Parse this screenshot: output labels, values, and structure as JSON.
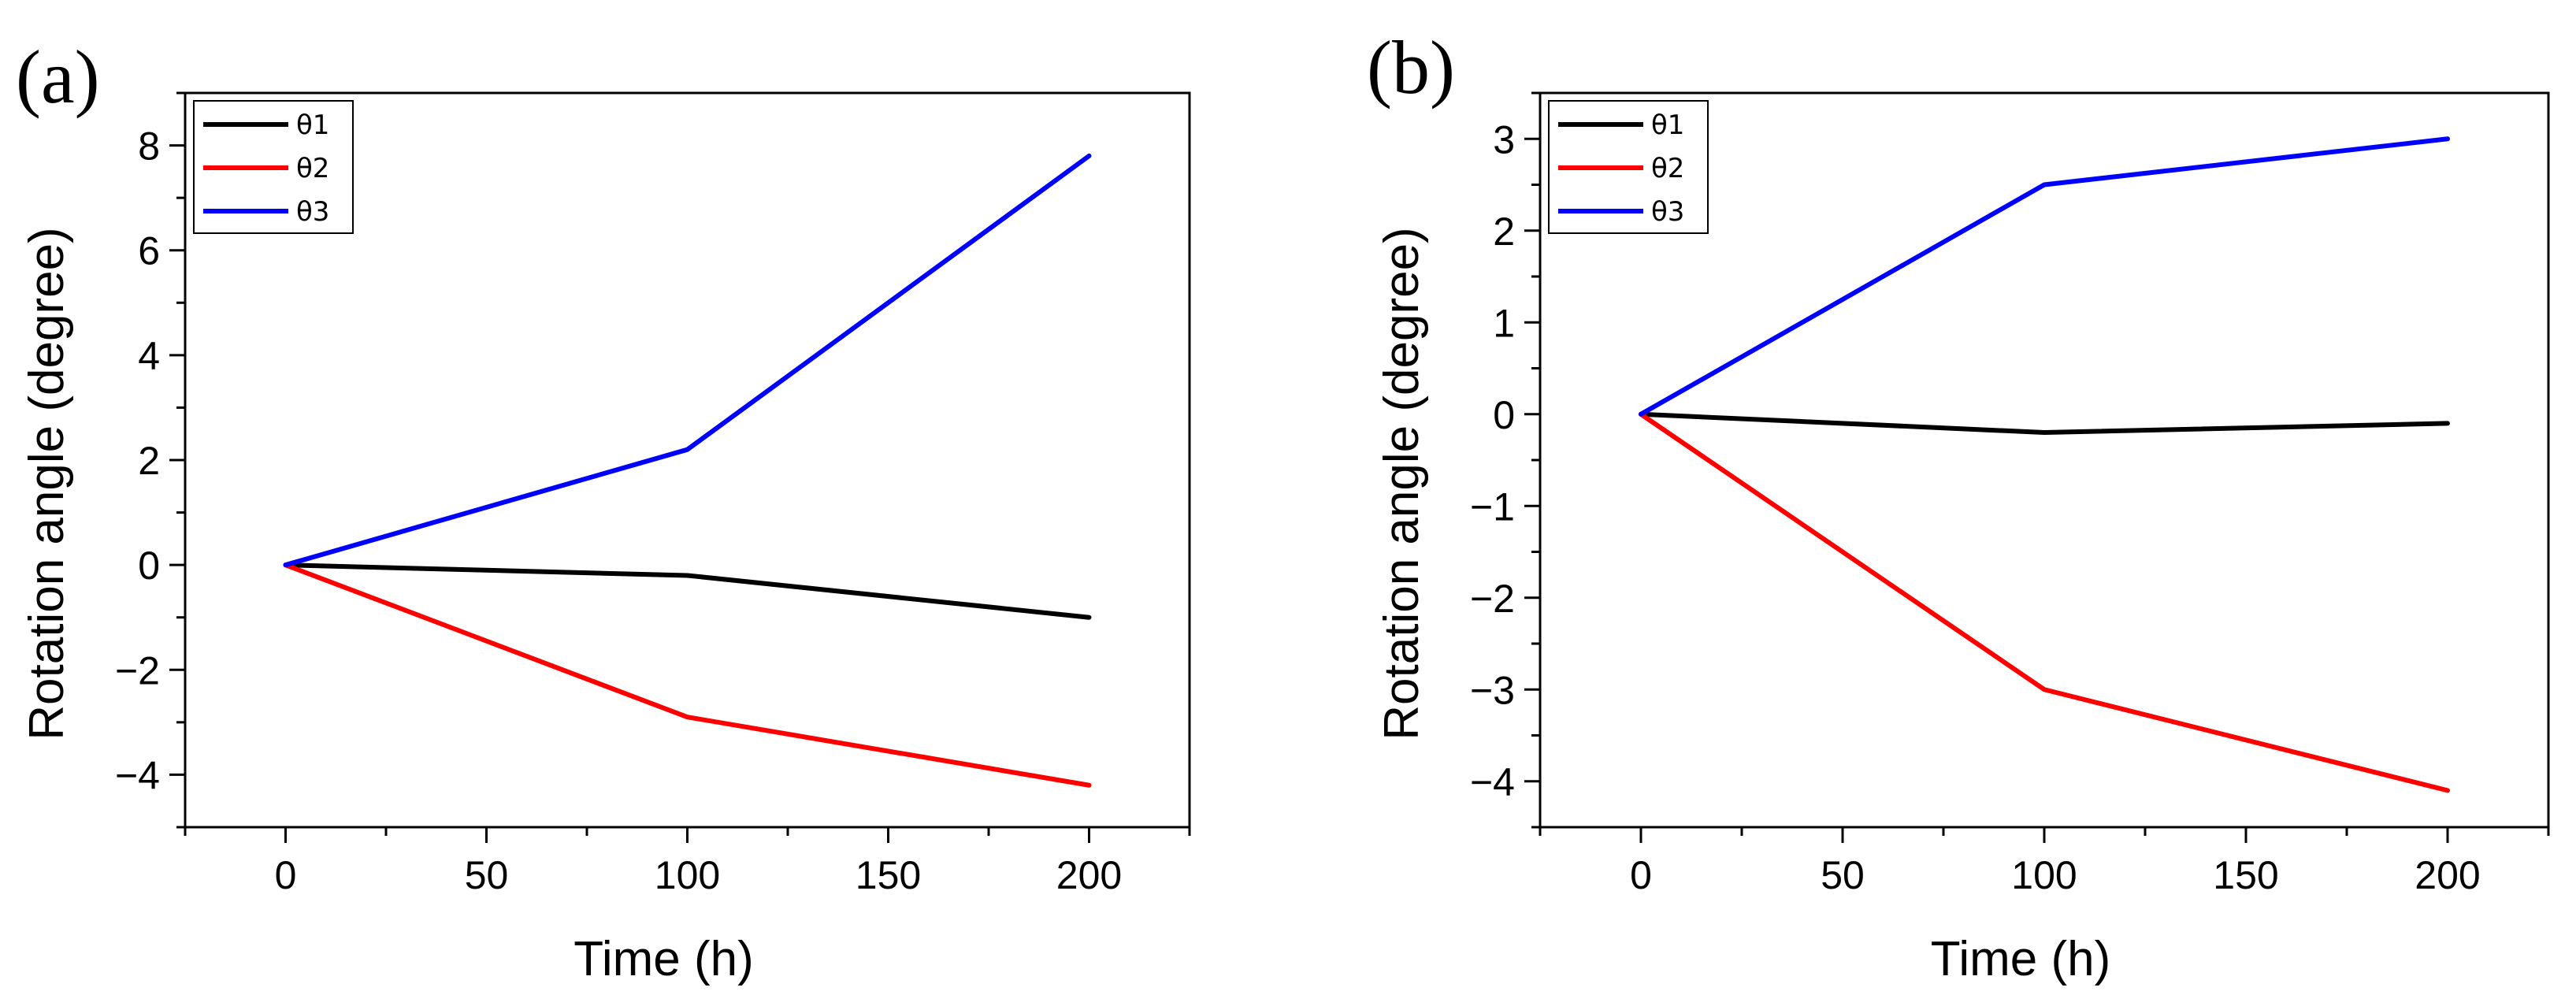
{
  "chart_data": [
    {
      "panel_label": "(a)",
      "type": "line",
      "xlabel": "Time (h)",
      "ylabel": "Rotation angle (degree)",
      "xlim": [
        -25,
        225
      ],
      "ylim": [
        -5,
        9
      ],
      "xticks": [
        0,
        50,
        100,
        150,
        200
      ],
      "yticks": [
        -4,
        -2,
        0,
        2,
        4,
        6,
        8
      ],
      "x_tick_labels": [
        "0",
        "50",
        "100",
        "150",
        "200"
      ],
      "y_tick_labels": [
        "−4",
        "−2",
        "0",
        "2",
        "4",
        "6",
        "8"
      ],
      "legend_position": "top-left",
      "x": [
        0,
        100,
        200
      ],
      "series": [
        {
          "name": "θ1",
          "color": "#000000",
          "values": [
            0,
            -0.2,
            -1.0
          ]
        },
        {
          "name": "θ2",
          "color": "#ff0000",
          "values": [
            0,
            -2.9,
            -4.2
          ]
        },
        {
          "name": "θ3",
          "color": "#0000ff",
          "values": [
            0,
            2.2,
            7.8
          ]
        }
      ]
    },
    {
      "panel_label": "(b)",
      "type": "line",
      "xlabel": "Time (h)",
      "ylabel": "Rotation angle (degree)",
      "xlim": [
        -25,
        225
      ],
      "ylim": [
        -4.5,
        3.5
      ],
      "xticks": [
        0,
        50,
        100,
        150,
        200
      ],
      "yticks": [
        -4,
        -3,
        -2,
        -1,
        0,
        1,
        2,
        3
      ],
      "x_tick_labels": [
        "0",
        "50",
        "100",
        "150",
        "200"
      ],
      "y_tick_labels": [
        "−4",
        "−3",
        "−2",
        "−1",
        "0",
        "1",
        "2",
        "3"
      ],
      "legend_position": "top-left",
      "x": [
        0,
        100,
        200
      ],
      "series": [
        {
          "name": "θ1",
          "color": "#000000",
          "values": [
            0,
            -0.2,
            -0.1
          ]
        },
        {
          "name": "θ2",
          "color": "#ff0000",
          "values": [
            0,
            -3.0,
            -4.1
          ]
        },
        {
          "name": "θ3",
          "color": "#0000ff",
          "values": [
            0,
            2.5,
            3.0
          ]
        }
      ]
    }
  ]
}
